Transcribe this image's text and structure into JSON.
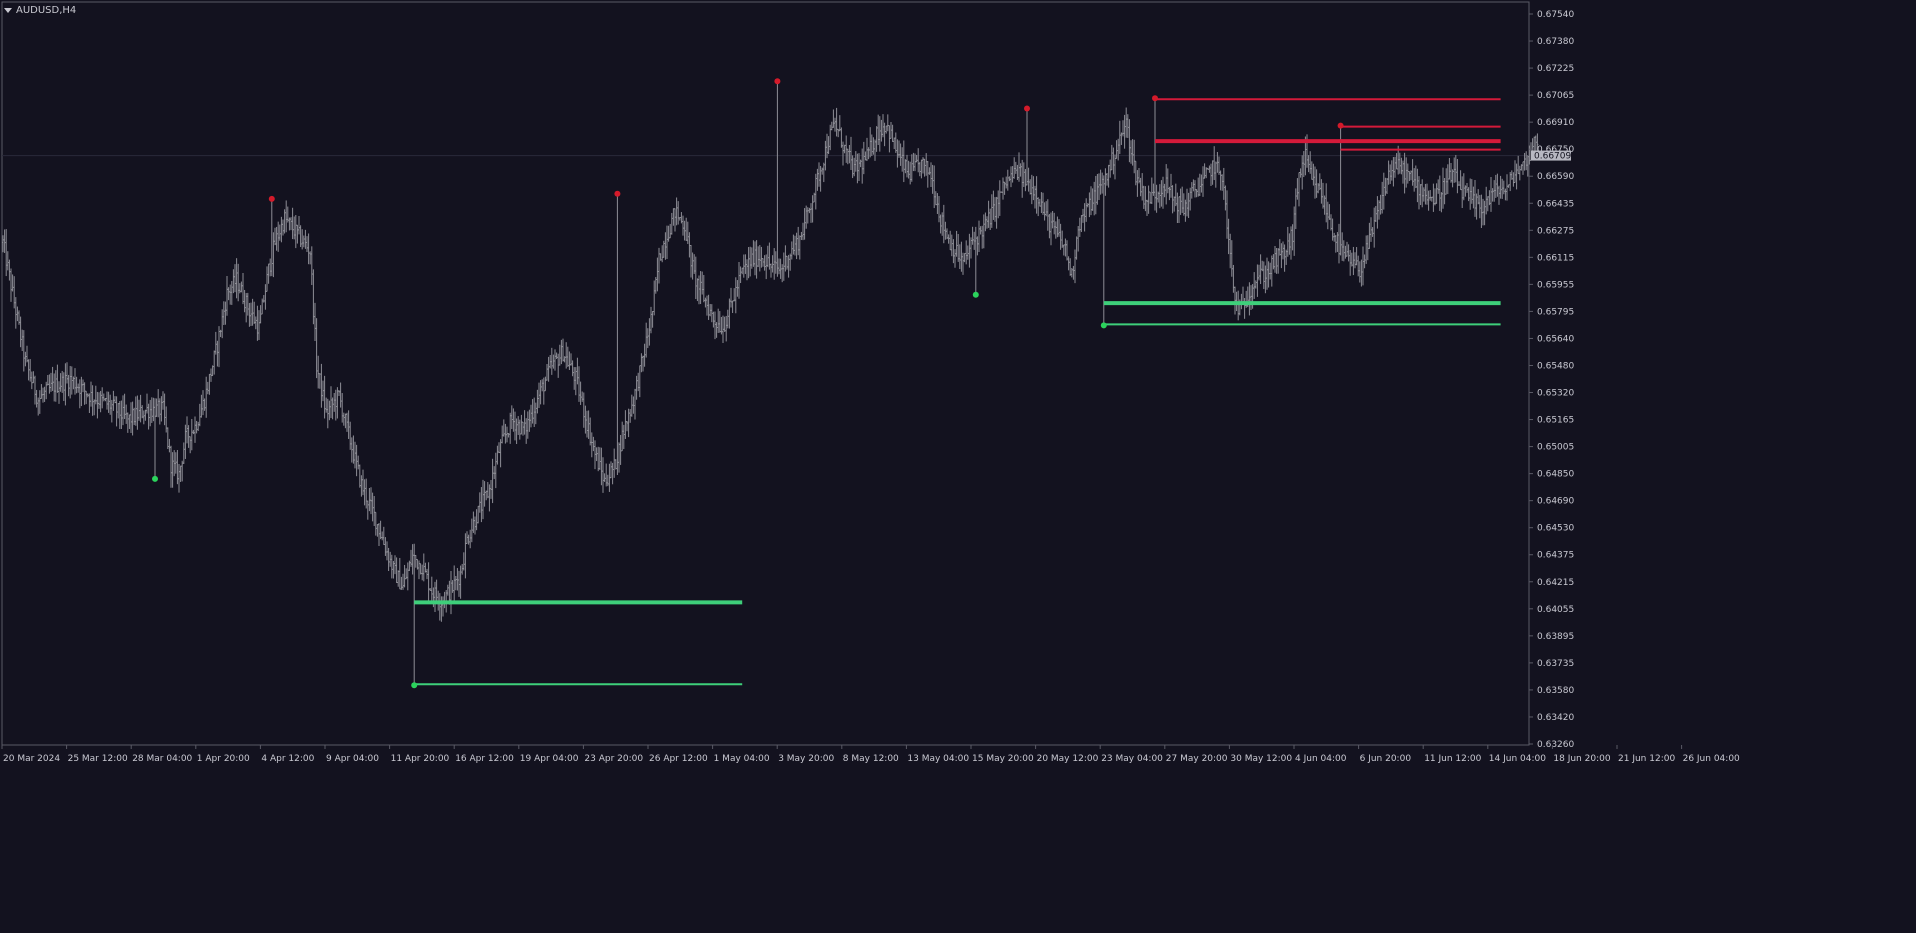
{
  "window": {
    "symbol_title": "AUDUSD,H4"
  },
  "colors": {
    "background": "#13121f",
    "frame": "#5a5a66",
    "bar": "#8e8e96",
    "bar_bright": "#d0d0d8",
    "swing_high": "#d41a2a",
    "swing_low": "#2bd35c",
    "resistance_line": "#d41a3a",
    "support_line": "#3ecf7a",
    "axis_text": "#c9c9d2",
    "current_price_box": "#b8b8c2"
  },
  "chart_data": {
    "type": "ohlc-bar",
    "symbol": "AUDUSD",
    "timeframe": "H4",
    "ylim": [
      0.6326,
      0.6762
    ],
    "current_price": "0.66709",
    "current_price_value": 0.6671,
    "y_ticks": [
      "0.67540",
      "0.67380",
      "0.67225",
      "0.67065",
      "0.66910",
      "0.66750",
      "0.66590",
      "0.66435",
      "0.66275",
      "0.66115",
      "0.65955",
      "0.65795",
      "0.65640",
      "0.65480",
      "0.65320",
      "0.65165",
      "0.65005",
      "0.64850",
      "0.64690",
      "0.64530",
      "0.64375",
      "0.64215",
      "0.64055",
      "0.63895",
      "0.63735",
      "0.63580",
      "0.63420",
      "0.63260"
    ],
    "x_ticks": [
      "20 Mar 2024",
      "25 Mar 12:00",
      "28 Mar 04:00",
      "1 Apr 20:00",
      "4 Apr 12:00",
      "9 Apr 04:00",
      "11 Apr 20:00",
      "16 Apr 12:00",
      "19 Apr 04:00",
      "23 Apr 20:00",
      "26 Apr 12:00",
      "1 May 04:00",
      "3 May 20:00",
      "8 May 12:00",
      "13 May 04:00",
      "15 May 20:00",
      "20 May 12:00",
      "23 May 04:00",
      "27 May 20:00",
      "30 May 12:00",
      "4 Jun 04:00",
      "6 Jun 20:00",
      "11 Jun 12:00",
      "14 Jun 04:00",
      "18 Jun 20:00",
      "21 Jun 12:00",
      "26 Jun 04:00"
    ],
    "price_path": [
      [
        0,
        0.662
      ],
      [
        6,
        0.659
      ],
      [
        14,
        0.655
      ],
      [
        22,
        0.6528
      ],
      [
        32,
        0.6536
      ],
      [
        42,
        0.654
      ],
      [
        55,
        0.653
      ],
      [
        68,
        0.6524
      ],
      [
        78,
        0.6516
      ],
      [
        90,
        0.6522
      ],
      [
        100,
        0.6522
      ],
      [
        105,
        0.649
      ],
      [
        110,
        0.6484
      ],
      [
        114,
        0.6505
      ],
      [
        120,
        0.6512
      ],
      [
        126,
        0.6528
      ],
      [
        134,
        0.656
      ],
      [
        140,
        0.659
      ],
      [
        146,
        0.6598
      ],
      [
        154,
        0.658
      ],
      [
        160,
        0.657
      ],
      [
        166,
        0.6604
      ],
      [
        170,
        0.662
      ],
      [
        176,
        0.6634
      ],
      [
        184,
        0.6625
      ],
      [
        192,
        0.6615
      ],
      [
        196,
        0.6548
      ],
      [
        202,
        0.652
      ],
      [
        210,
        0.653
      ],
      [
        218,
        0.65
      ],
      [
        224,
        0.6478
      ],
      [
        232,
        0.646
      ],
      [
        238,
        0.6444
      ],
      [
        244,
        0.6428
      ],
      [
        250,
        0.6418
      ],
      [
        256,
        0.6436
      ],
      [
        262,
        0.643
      ],
      [
        268,
        0.6416
      ],
      [
        274,
        0.641
      ],
      [
        280,
        0.6416
      ],
      [
        286,
        0.6426
      ],
      [
        290,
        0.6446
      ],
      [
        296,
        0.646
      ],
      [
        304,
        0.6475
      ],
      [
        310,
        0.6498
      ],
      [
        318,
        0.6516
      ],
      [
        326,
        0.651
      ],
      [
        334,
        0.6528
      ],
      [
        342,
        0.6546
      ],
      [
        350,
        0.6556
      ],
      [
        358,
        0.654
      ],
      [
        364,
        0.6518
      ],
      [
        370,
        0.6496
      ],
      [
        376,
        0.648
      ],
      [
        382,
        0.6488
      ],
      [
        388,
        0.651
      ],
      [
        394,
        0.6528
      ],
      [
        400,
        0.6552
      ],
      [
        406,
        0.658
      ],
      [
        410,
        0.661
      ],
      [
        414,
        0.6622
      ],
      [
        420,
        0.6638
      ],
      [
        426,
        0.663
      ],
      [
        432,
        0.66
      ],
      [
        438,
        0.6588
      ],
      [
        444,
        0.6575
      ],
      [
        450,
        0.657
      ],
      [
        456,
        0.6586
      ],
      [
        462,
        0.6603
      ],
      [
        468,
        0.661
      ],
      [
        474,
        0.6612
      ],
      [
        480,
        0.6606
      ],
      [
        486,
        0.6604
      ],
      [
        492,
        0.6614
      ],
      [
        498,
        0.6622
      ],
      [
        504,
        0.664
      ],
      [
        510,
        0.666
      ],
      [
        516,
        0.668
      ],
      [
        520,
        0.669
      ],
      [
        526,
        0.6675
      ],
      [
        532,
        0.6662
      ],
      [
        540,
        0.667
      ],
      [
        546,
        0.6684
      ],
      [
        552,
        0.669
      ],
      [
        560,
        0.667
      ],
      [
        566,
        0.666
      ],
      [
        574,
        0.6666
      ],
      [
        580,
        0.666
      ],
      [
        586,
        0.6634
      ],
      [
        592,
        0.662
      ],
      [
        600,
        0.6608
      ],
      [
        606,
        0.662
      ],
      [
        614,
        0.663
      ],
      [
        620,
        0.664
      ],
      [
        626,
        0.6654
      ],
      [
        634,
        0.6662
      ],
      [
        640,
        0.6655
      ],
      [
        646,
        0.665
      ],
      [
        652,
        0.6634
      ],
      [
        658,
        0.6626
      ],
      [
        664,
        0.6616
      ],
      [
        668,
        0.66
      ],
      [
        672,
        0.663
      ],
      [
        678,
        0.664
      ],
      [
        684,
        0.665
      ],
      [
        690,
        0.666
      ],
      [
        696,
        0.6675
      ],
      [
        702,
        0.669
      ],
      [
        708,
        0.666
      ],
      [
        714,
        0.6645
      ],
      [
        720,
        0.6648
      ],
      [
        726,
        0.6655
      ],
      [
        732,
        0.6645
      ],
      [
        738,
        0.664
      ],
      [
        744,
        0.665
      ],
      [
        750,
        0.6655
      ],
      [
        756,
        0.6665
      ],
      [
        762,
        0.666
      ],
      [
        766,
        0.662
      ],
      [
        770,
        0.6585
      ],
      [
        774,
        0.658
      ],
      [
        778,
        0.659
      ],
      [
        784,
        0.66
      ],
      [
        790,
        0.6602
      ],
      [
        796,
        0.661
      ],
      [
        802,
        0.6615
      ],
      [
        806,
        0.6625
      ],
      [
        810,
        0.666
      ],
      [
        814,
        0.667
      ],
      [
        818,
        0.6656
      ],
      [
        824,
        0.6648
      ],
      [
        830,
        0.663
      ],
      [
        836,
        0.6615
      ],
      [
        842,
        0.6608
      ],
      [
        848,
        0.6604
      ],
      [
        854,
        0.662
      ],
      [
        860,
        0.664
      ],
      [
        866,
        0.666
      ],
      [
        870,
        0.6665
      ],
      [
        876,
        0.6662
      ],
      [
        882,
        0.6655
      ],
      [
        888,
        0.665
      ],
      [
        894,
        0.6645
      ],
      [
        900,
        0.6652
      ],
      [
        906,
        0.666
      ],
      [
        912,
        0.665
      ],
      [
        918,
        0.6644
      ],
      [
        924,
        0.664
      ],
      [
        930,
        0.6648
      ],
      [
        936,
        0.6652
      ],
      [
        940,
        0.665
      ],
      [
        944,
        0.666
      ],
      [
        950,
        0.6665
      ],
      [
        958,
        0.668
      ]
    ],
    "swing_highs": [
      {
        "i": 168,
        "price": 0.6645
      },
      {
        "i": 384,
        "price": 0.6648
      },
      {
        "i": 484,
        "price": 0.6714
      },
      {
        "i": 640,
        "price": 0.6698
      },
      {
        "i": 720,
        "price": 0.6704
      },
      {
        "i": 836,
        "price": 0.6688
      }
    ],
    "swing_lows": [
      {
        "i": 95,
        "price": 0.6482
      },
      {
        "i": 257,
        "price": 0.6361
      },
      {
        "i": 608,
        "price": 0.659
      },
      {
        "i": 688,
        "price": 0.6572
      }
    ],
    "resistance_levels": [
      {
        "price": 0.6704,
        "i_start": 720,
        "i_end": 936,
        "weight": 2
      },
      {
        "price": 0.66795,
        "i_start": 720,
        "i_end": 936,
        "weight": 4
      },
      {
        "price": 0.6688,
        "i_start": 836,
        "i_end": 936,
        "weight": 2
      },
      {
        "price": 0.66745,
        "i_start": 836,
        "i_end": 936,
        "weight": 2
      }
    ],
    "support_levels": [
      {
        "price": 0.6409,
        "i_start": 257,
        "i_end": 462,
        "weight": 4
      },
      {
        "price": 0.6361,
        "i_start": 257,
        "i_end": 462,
        "weight": 2
      },
      {
        "price": 0.65845,
        "i_start": 688,
        "i_end": 936,
        "weight": 4
      },
      {
        "price": 0.6572,
        "i_start": 688,
        "i_end": 936,
        "weight": 2
      }
    ]
  }
}
